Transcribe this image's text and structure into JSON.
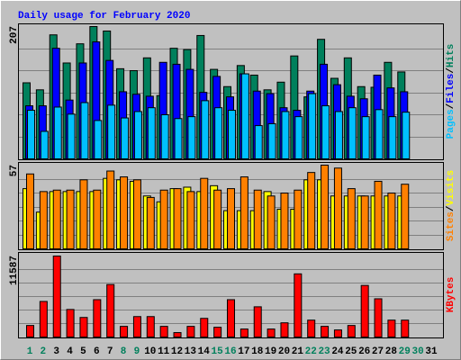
{
  "title": "Daily usage for February 2020",
  "legend_separator": "/",
  "chart_data": [
    {
      "type": "bar",
      "ylim": [
        0,
        207
      ],
      "yticks": [
        207
      ],
      "series": [
        {
          "name": "Hits",
          "color": "#00805c",
          "values": [
            119,
            108,
            194,
            150,
            180,
            207,
            200,
            141,
            138,
            158,
            99,
            173,
            171,
            193,
            140,
            113,
            146,
            131,
            108,
            120,
            161,
            97,
            187,
            126,
            158,
            113,
            112,
            151,
            136,
            null,
            null
          ]
        },
        {
          "name": "Files",
          "color": "#0000ff",
          "values": [
            83,
            83,
            173,
            92,
            150,
            183,
            154,
            105,
            101,
            98,
            151,
            148,
            140,
            104,
            129,
            97,
            133,
            106,
            102,
            80,
            76,
            106,
            148,
            116,
            98,
            94,
            131,
            111,
            105,
            null,
            null
          ]
        },
        {
          "name": "Pages",
          "color": "#00c0ff",
          "values": [
            76,
            43,
            81,
            70,
            88,
            60,
            84,
            64,
            74,
            80,
            69,
            63,
            66,
            91,
            80,
            76,
            133,
            52,
            55,
            74,
            66,
            102,
            83,
            74,
            80,
            66,
            77,
            66,
            73,
            null,
            null
          ]
        }
      ]
    },
    {
      "type": "bar",
      "ylim": [
        0,
        57
      ],
      "yticks": [
        57
      ],
      "series": [
        {
          "name": "Visits",
          "color": "#ffff00",
          "values": [
            41,
            25,
            39,
            39,
            39,
            39,
            48,
            47,
            46,
            36,
            32,
            41,
            42,
            39,
            43,
            26,
            26,
            26,
            39,
            27,
            27,
            47,
            47,
            36,
            36,
            36,
            36,
            36,
            36,
            null,
            null
          ]
        },
        {
          "name": "Sites",
          "color": "#ff8000",
          "values": [
            51,
            39,
            40,
            40,
            47,
            40,
            53,
            49,
            47,
            35,
            40,
            41,
            39,
            48,
            40,
            41,
            49,
            40,
            36,
            38,
            40,
            52,
            57,
            55,
            41,
            36,
            46,
            38,
            44,
            null,
            null
          ]
        }
      ]
    },
    {
      "type": "bar",
      "ylim": [
        0,
        11587
      ],
      "yticks": [
        11587
      ],
      "categories": [
        "1",
        "2",
        "3",
        "4",
        "5",
        "6",
        "7",
        "8",
        "9",
        "10",
        "11",
        "12",
        "13",
        "14",
        "15",
        "16",
        "17",
        "18",
        "19",
        "20",
        "21",
        "22",
        "23",
        "24",
        "25",
        "26",
        "27",
        "28",
        "29",
        "30",
        "31"
      ],
      "x_label_colors": [
        "#00805c",
        "#00805c",
        "#000000",
        "#000000",
        "#000000",
        "#000000",
        "#000000",
        "#00805c",
        "#00805c",
        "#000000",
        "#000000",
        "#000000",
        "#000000",
        "#000000",
        "#00805c",
        "#00805c",
        "#000000",
        "#000000",
        "#000000",
        "#000000",
        "#000000",
        "#00805c",
        "#00805c",
        "#000000",
        "#000000",
        "#000000",
        "#000000",
        "#000000",
        "#00805c",
        "#00805c",
        "#000000"
      ],
      "series": [
        {
          "name": "KBytes",
          "color": "#ff0000",
          "values": [
            1655,
            5092,
            11587,
            3946,
            2801,
            5347,
            7511,
            1528,
            2928,
            2928,
            1528,
            637,
            1528,
            2673,
            1400,
            5347,
            1146,
            4328,
            1146,
            2037,
            9038,
            2419,
            1528,
            1018,
            1655,
            7383,
            5474,
            2419,
            2419,
            null,
            null
          ]
        }
      ]
    }
  ]
}
